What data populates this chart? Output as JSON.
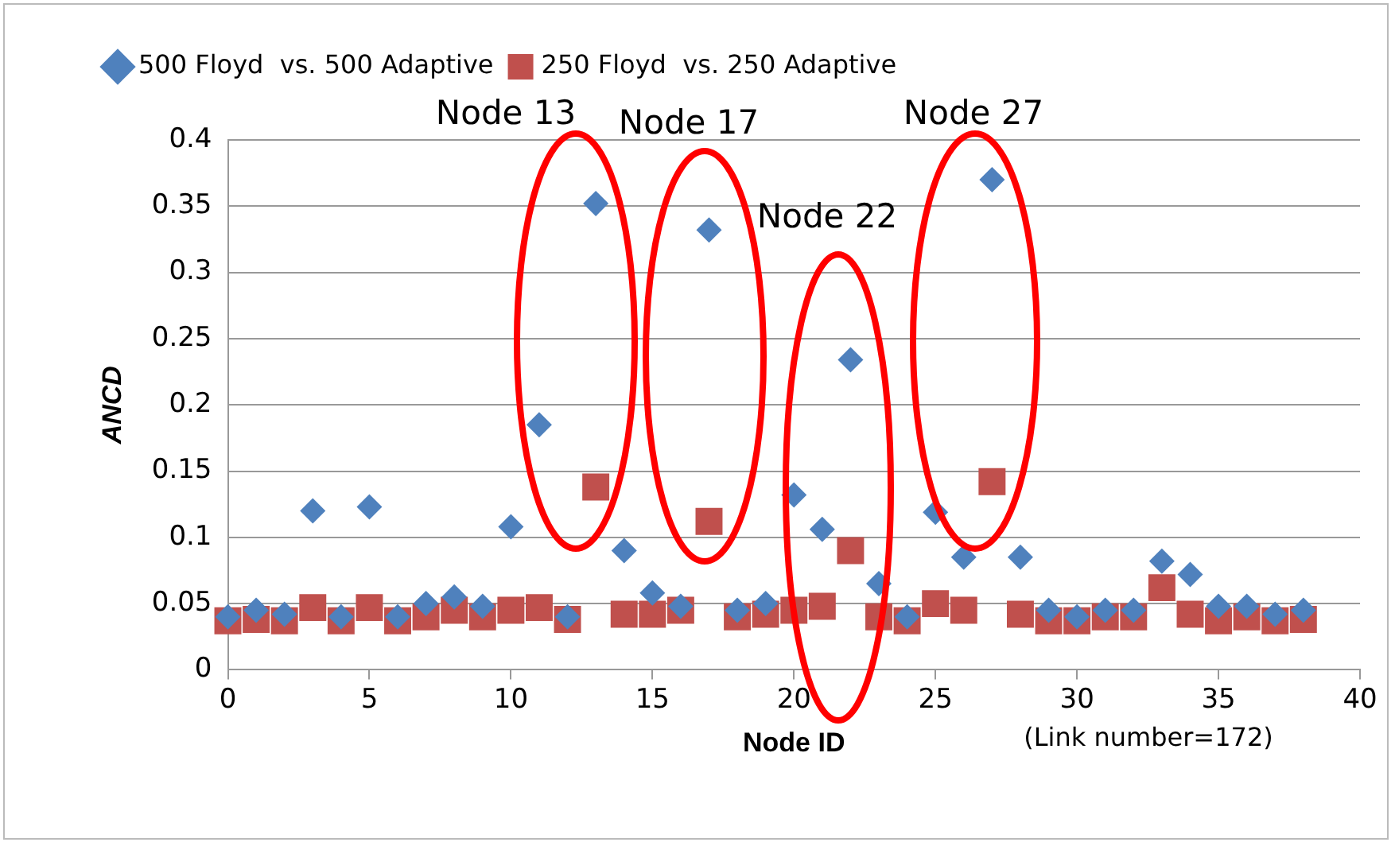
{
  "chart_data": {
    "type": "scatter",
    "xlabel": "Node ID",
    "ylabel": "ANCD",
    "x": [
      0,
      1,
      2,
      3,
      4,
      5,
      6,
      7,
      8,
      9,
      10,
      11,
      12,
      13,
      14,
      15,
      16,
      17,
      18,
      19,
      20,
      21,
      22,
      23,
      24,
      25,
      26,
      27,
      28,
      29,
      30,
      31,
      32,
      33,
      34,
      35,
      36,
      37,
      38
    ],
    "series": [
      {
        "name": "500 Floyd  vs. 500 Adaptive",
        "color": "#4f81bd",
        "marker": "diamond",
        "values": [
          0.04,
          0.045,
          0.042,
          0.12,
          0.04,
          0.123,
          0.04,
          0.05,
          0.055,
          0.048,
          0.108,
          0.185,
          0.04,
          0.352,
          0.09,
          0.058,
          0.048,
          0.332,
          0.045,
          0.05,
          0.132,
          0.106,
          0.234,
          0.065,
          0.04,
          0.119,
          0.085,
          0.37,
          0.085,
          0.045,
          0.04,
          0.045,
          0.045,
          0.082,
          0.072,
          0.048,
          0.048,
          0.042,
          0.045
        ]
      },
      {
        "name": "250 Floyd  vs. 250 Adaptive",
        "color": "#c0504d",
        "marker": "square",
        "values": [
          0.037,
          0.038,
          0.037,
          0.047,
          0.037,
          0.047,
          0.037,
          0.04,
          0.045,
          0.04,
          0.045,
          0.047,
          0.038,
          0.138,
          0.042,
          0.042,
          0.045,
          0.112,
          0.04,
          0.042,
          0.045,
          0.048,
          0.09,
          0.04,
          0.037,
          0.05,
          0.045,
          0.142,
          0.042,
          0.037,
          0.037,
          0.04,
          0.04,
          0.062,
          0.042,
          0.037,
          0.04,
          0.037,
          0.038
        ]
      }
    ],
    "xlim": [
      0,
      40
    ],
    "xticks": [
      0,
      5,
      10,
      15,
      20,
      25,
      30,
      35,
      40
    ],
    "ylim": [
      0,
      0.4
    ],
    "yticks": [
      0,
      0.05,
      0.1,
      0.15,
      0.2,
      0.25,
      0.3,
      0.35,
      0.4
    ],
    "grid": "y",
    "legend": "top",
    "annotations": [
      "Node 13",
      "Node 17",
      "Node 22",
      "Node 27",
      "(Link number=172)"
    ]
  }
}
